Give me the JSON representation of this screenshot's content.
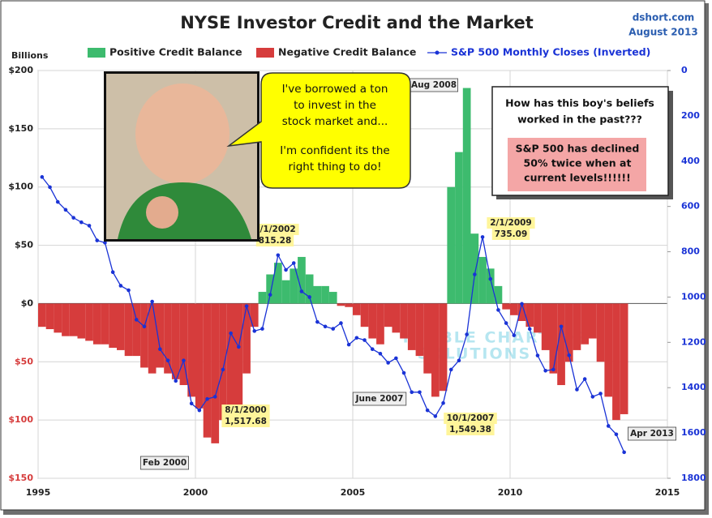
{
  "chart_data": {
    "type": "bar-line",
    "title": "NYSE Investor Credit and the Market",
    "source": "dshort.com",
    "date": "August 2013",
    "ylabel": "Billions",
    "xlim": [
      1995,
      2015
    ],
    "xticks": [
      1995,
      2000,
      2005,
      2010,
      2015
    ],
    "ylim": [
      -150,
      200
    ],
    "yticks": [
      200,
      150,
      100,
      50,
      0,
      {
        "value": -50,
        "label": "$50"
      },
      {
        "value": -100,
        "label": "$100"
      },
      {
        "value": -150,
        "label": "$150"
      }
    ],
    "ytick_labels_positive": [
      "$200",
      "$150",
      "$100",
      "$50",
      "$0"
    ],
    "y2lim": [
      1800,
      0
    ],
    "y2ticks": [
      0,
      200,
      400,
      600,
      800,
      1000,
      1200,
      1400,
      1600,
      1800
    ],
    "grid": true,
    "x": [
      1995,
      1995.25,
      1995.5,
      1995.75,
      1996,
      1996.25,
      1996.5,
      1996.75,
      1997,
      1997.25,
      1997.5,
      1997.75,
      1998,
      1998.25,
      1998.5,
      1998.75,
      1999,
      1999.25,
      1999.5,
      1999.75,
      2000,
      2000.25,
      2000.5,
      2000.75,
      2001,
      2001.25,
      2001.5,
      2001.75,
      2002,
      2002.25,
      2002.5,
      2002.75,
      2003,
      2003.25,
      2003.5,
      2003.75,
      2004,
      2004.25,
      2004.5,
      2004.75,
      2005,
      2005.25,
      2005.5,
      2005.75,
      2006,
      2006.25,
      2006.5,
      2006.75,
      2007,
      2007.25,
      2007.5,
      2007.75,
      2008,
      2008.25,
      2008.5,
      2008.75,
      2009,
      2009.25,
      2009.5,
      2009.75,
      2010,
      2010.25,
      2010.5,
      2010.75,
      2011,
      2011.25,
      2011.5,
      2011.75,
      2012,
      2012.25,
      2012.5,
      2012.75,
      2013,
      2013.25,
      2013.5
    ],
    "series": [
      {
        "name": "Positive Credit Balance",
        "color": "#3dbb6e",
        "type": "bar",
        "values": [
          null,
          null,
          null,
          null,
          null,
          null,
          null,
          null,
          null,
          null,
          null,
          null,
          null,
          null,
          null,
          null,
          null,
          null,
          null,
          null,
          null,
          null,
          null,
          null,
          null,
          null,
          null,
          null,
          10,
          25,
          35,
          20,
          30,
          40,
          25,
          15,
          15,
          10,
          null,
          null,
          null,
          null,
          null,
          null,
          null,
          null,
          null,
          null,
          null,
          null,
          null,
          null,
          100,
          130,
          185,
          60,
          40,
          30,
          15,
          null,
          null,
          null,
          null,
          null,
          null,
          null,
          null,
          null,
          null,
          null,
          null,
          null,
          null,
          null,
          null
        ]
      },
      {
        "name": "Negative Credit Balance",
        "color": "#d63c3c",
        "type": "bar",
        "values": [
          -20,
          -22,
          -25,
          -28,
          -28,
          -30,
          -32,
          -35,
          -35,
          -38,
          -40,
          -45,
          -45,
          -55,
          -60,
          -55,
          -60,
          -65,
          -70,
          -80,
          -90,
          -115,
          -120,
          -100,
          -100,
          -90,
          -60,
          -20,
          null,
          null,
          null,
          null,
          null,
          null,
          null,
          null,
          null,
          null,
          -2,
          -3,
          -10,
          -20,
          -30,
          -35,
          -20,
          -25,
          -30,
          -40,
          -45,
          -60,
          -80,
          -75,
          null,
          null,
          null,
          null,
          null,
          null,
          null,
          -5,
          -10,
          -15,
          -20,
          -25,
          -40,
          -60,
          -70,
          -50,
          -40,
          -35,
          -30,
          -50,
          -80,
          -100,
          -95
        ]
      },
      {
        "name": "S&P 500 Monthly Closes (Inverted)",
        "color": "#1a33d6",
        "type": "line",
        "axis": "y2",
        "values": [
          470,
          515,
          580,
          615,
          650,
          670,
          685,
          750,
          760,
          890,
          950,
          970,
          1100,
          1130,
          1020,
          1230,
          1280,
          1370,
          1280,
          1470,
          1500,
          1450,
          1440,
          1320,
          1160,
          1220,
          1040,
          1150,
          1140,
          990,
          815,
          880,
          850,
          975,
          1000,
          1110,
          1130,
          1140,
          1115,
          1210,
          1180,
          1190,
          1230,
          1250,
          1290,
          1270,
          1335,
          1420,
          1420,
          1500,
          1526,
          1468,
          1320,
          1280,
          1165,
          900,
          735,
          920,
          1057,
          1115,
          1169,
          1030,
          1141,
          1258,
          1325,
          1320,
          1130,
          1257,
          1408,
          1362,
          1440,
          1426,
          1569,
          1606,
          1685
        ]
      }
    ],
    "annotations": [
      [
        "Aug 2008"
      ],
      [
        "Feb 2000"
      ],
      [
        "June 2007"
      ],
      [
        "Apr 2013"
      ],
      [
        "9/1/2002",
        "815.28"
      ],
      [
        "8/1/2000",
        "1,517.68"
      ],
      [
        "10/1/2007",
        "1,549.38"
      ],
      [
        "2/1/2009",
        "735.09"
      ]
    ],
    "speech_bubble": [
      "I've borrowed a ton",
      "to invest in the",
      "stock market and...",
      "I'm confident its the",
      "right thing to do!"
    ],
    "question": [
      "How has this boy's beliefs",
      "worked in the past???"
    ],
    "warning": [
      "S&P 500 has declined",
      "50% twice when at",
      "current levels!!!!!!"
    ],
    "watermark": [
      "KIMBLE CHARTING",
      "SOLUTIONS"
    ]
  }
}
